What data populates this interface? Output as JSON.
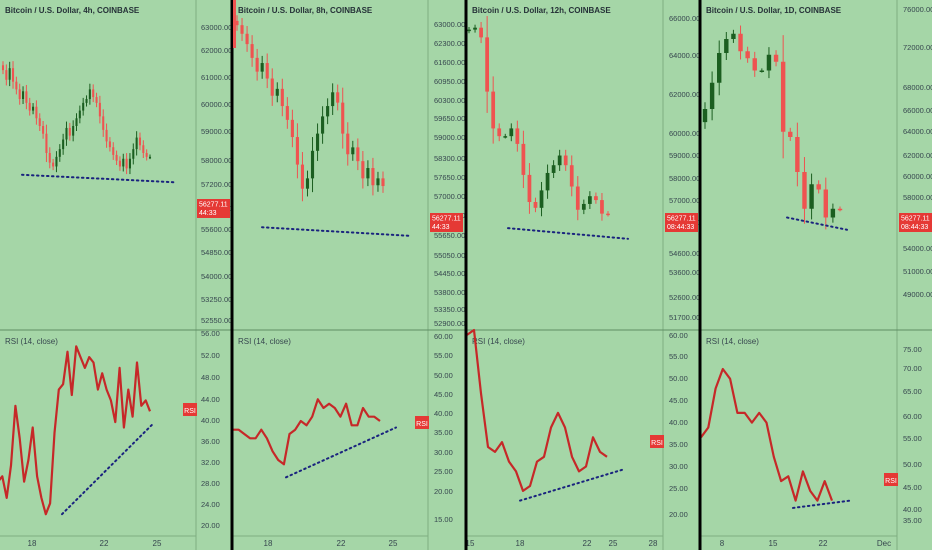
{
  "colors": {
    "background": "#a5d6a7",
    "up": "#1b5e20",
    "down": "#ef5350",
    "rsi": "#c62828",
    "divergence": "#1a237e",
    "price_tag": "#e53935",
    "axis_text": "#37474f",
    "separator": "#000000"
  },
  "chart_data": [
    {
      "type": "candlestick",
      "title": "Bitcoin / U.S. Dollar, 4h, COINBASE",
      "price_axis": [
        "63000.00",
        "62000.00",
        "61000.00",
        "60000.00",
        "59000.00",
        "58000.00",
        "57200.00",
        "56400.00",
        "55600.00",
        "54850.00",
        "54000.00",
        "53250.00",
        "52550.00"
      ],
      "current_price": "56277.11",
      "countdown": "44:33",
      "candles_close": [
        60800,
        60300,
        60900,
        60200,
        59800,
        59300,
        59700,
        59100,
        58700,
        58900,
        58300,
        57900,
        57500,
        56500,
        56000,
        55800,
        56300,
        56700,
        57200,
        57800,
        57400,
        57900,
        58300,
        58700,
        59100,
        59300,
        59800,
        59400,
        59100,
        58400,
        57700,
        57100,
        56800,
        56400,
        56100,
        55800,
        56200,
        55700,
        56200,
        56700,
        57300,
        56900,
        56500,
        56300,
        56300
      ],
      "trendline": [
        55370,
        54980
      ],
      "rsi": {
        "label": "RSI (14, close)",
        "axis": [
          "56.00",
          "52.00",
          "48.00",
          "44.00",
          "40.00",
          "36.00",
          "32.00",
          "28.00",
          "24.00",
          "20.00"
        ],
        "values": [
          28,
          29,
          25,
          31,
          42,
          36,
          28,
          32,
          38,
          29,
          25,
          22,
          24,
          37,
          45,
          46,
          52,
          44,
          53,
          51,
          49,
          51,
          50,
          45,
          48,
          45,
          43,
          39,
          49,
          38,
          45,
          40,
          50,
          42,
          43,
          41
        ],
        "tag": "RSI",
        "trendline": [
          22,
          38.5
        ]
      },
      "x_ticks": [
        "18",
        "22",
        "25"
      ]
    },
    {
      "type": "candlestick",
      "title": "Bitcoin / U.S. Dollar, 8h, COINBASE",
      "price_axis": [
        "63000.00",
        "62300.00",
        "61600.00",
        "60950.00",
        "60300.00",
        "59650.00",
        "59000.00",
        "58300.00",
        "57650.00",
        "57000.00",
        "56350.00",
        "55650.00",
        "55050.00",
        "54450.00",
        "53800.00",
        "53350.00",
        "52900.00"
      ],
      "current_price": "56277.11",
      "countdown": "44:33",
      "candles_close": [
        60950,
        60700,
        60400,
        60000,
        59600,
        59850,
        59400,
        58900,
        59100,
        58600,
        58200,
        57700,
        56900,
        56200,
        56500,
        57300,
        57800,
        58300,
        58600,
        59000,
        58700,
        57800,
        57200,
        57400,
        57000,
        56500,
        56800,
        56300,
        56500,
        56277
      ],
      "trendline": [
        55080,
        54830
      ],
      "rsi": {
        "label": "RSI (14, close)",
        "axis": [
          "60.00",
          "55.00",
          "50.00",
          "45.00",
          "40.00",
          "35.00",
          "30.00",
          "25.00",
          "20.00",
          "15.00"
        ],
        "values": [
          37,
          37,
          36,
          35,
          35,
          37,
          35,
          32,
          30,
          29,
          36,
          37,
          39,
          38,
          40,
          44,
          42,
          43,
          42,
          40,
          43,
          38,
          38,
          42,
          40,
          40,
          39
        ],
        "tag": "RSI",
        "trendline": [
          26,
          37.5
        ]
      },
      "x_ticks": [
        "18",
        "22",
        "25"
      ]
    },
    {
      "type": "candlestick",
      "title": "Bitcoin / U.S. Dollar, 12h, COINBASE",
      "price_axis": [
        "66000.00",
        "64000.00",
        "62000.00",
        "60000.00",
        "59000.00",
        "58000.00",
        "57000.00",
        "56000.00",
        "54600.00",
        "53600.00",
        "52600.00",
        "51700.00"
      ],
      "current_price": "56277.11",
      "countdown": "08:44:33",
      "candles_close": [
        65800,
        65900,
        65400,
        62600,
        60700,
        60300,
        60300,
        60700,
        59900,
        58300,
        56900,
        56600,
        57500,
        58400,
        58800,
        59300,
        58800,
        57700,
        56500,
        56800,
        57200,
        57000,
        56300,
        56277
      ],
      "trendline": [
        55550,
        55000
      ],
      "rsi": {
        "label": "RSI (14, close)",
        "axis": [
          "60.00",
          "55.00",
          "50.00",
          "45.00",
          "40.00",
          "35.00",
          "30.00",
          "25.00",
          "20.00"
        ],
        "values": [
          59,
          60,
          47,
          36,
          35,
          37,
          33,
          31,
          27,
          28,
          33,
          34,
          40,
          43,
          40,
          34,
          31,
          32,
          38,
          35,
          34
        ],
        "tag": "RSI",
        "trendline": [
          25,
          31.5
        ]
      },
      "x_ticks": [
        "15",
        "18",
        "22",
        "25",
        "28"
      ]
    },
    {
      "type": "candlestick",
      "title": "Bitcoin / U.S. Dollar, 1D, COINBASE",
      "price_axis": [
        "76000.00",
        "72000.00",
        "68000.00",
        "66000.00",
        "64000.00",
        "62000.00",
        "60000.00",
        "58000.00",
        "56000.00",
        "54000.00",
        "51000.00",
        "49000.00"
      ],
      "current_price": "56277.11",
      "countdown": "08:44:33",
      "candles_close": [
        62000,
        63500,
        65200,
        66000,
        66300,
        65300,
        64900,
        64200,
        64200,
        65100,
        64700,
        60700,
        60400,
        58400,
        56300,
        57700,
        57400,
        55800,
        56300,
        56277
      ],
      "trendline": [
        55800,
        55100
      ],
      "rsi": {
        "label": "RSI (14, close)",
        "axis": [
          "75.00",
          "70.00",
          "65.00",
          "60.00",
          "55.00",
          "50.00",
          "45.00",
          "40.00",
          "35.00"
        ],
        "values": [
          53,
          55,
          63,
          67,
          65,
          58,
          58,
          56,
          58,
          56,
          49,
          44,
          45,
          40,
          46,
          42,
          40,
          44,
          40
        ],
        "tag": "RSI",
        "trendline": [
          38.5,
          40
        ]
      },
      "x_ticks": [
        "8",
        "15",
        "22",
        "Dec"
      ]
    }
  ]
}
